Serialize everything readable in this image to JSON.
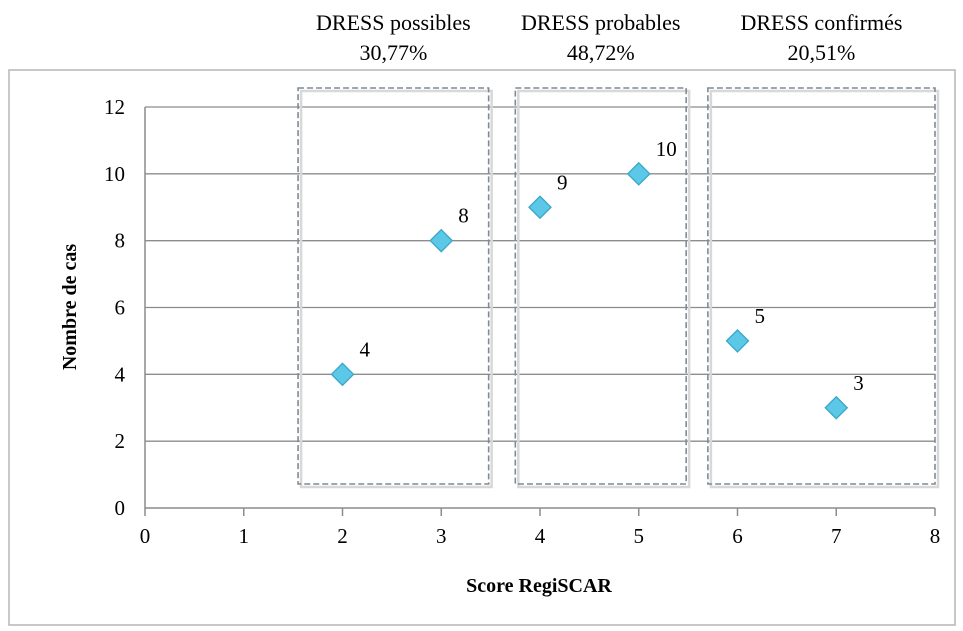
{
  "chart_data": {
    "type": "scatter",
    "title": "",
    "xlabel": "Score RegiSCAR",
    "ylabel": "Nombre de cas",
    "xlim": [
      0,
      8
    ],
    "ylim": [
      0,
      12
    ],
    "xticks": [
      0,
      1,
      2,
      3,
      4,
      5,
      6,
      7,
      8
    ],
    "yticks": [
      0,
      2,
      4,
      6,
      8,
      10,
      12
    ],
    "grid": "horizontal",
    "marker": "diamond",
    "marker_color": "#5bc8e8",
    "series": [
      {
        "x": [
          2,
          3,
          4,
          5,
          6,
          7
        ],
        "y": [
          4,
          8,
          9,
          10,
          5,
          3
        ],
        "labels": [
          "4",
          "8",
          "9",
          "10",
          "5",
          "3"
        ]
      }
    ],
    "groups": [
      {
        "name": "DRESS possibles",
        "percent": "30,77%",
        "x_range": [
          1.55,
          3.48
        ]
      },
      {
        "name": "DRESS probables",
        "percent": "48,72%",
        "x_range": [
          3.75,
          5.48
        ]
      },
      {
        "name": "DRESS confirmés",
        "percent": "20,51%",
        "x_range": [
          5.7,
          8.0
        ]
      }
    ]
  }
}
